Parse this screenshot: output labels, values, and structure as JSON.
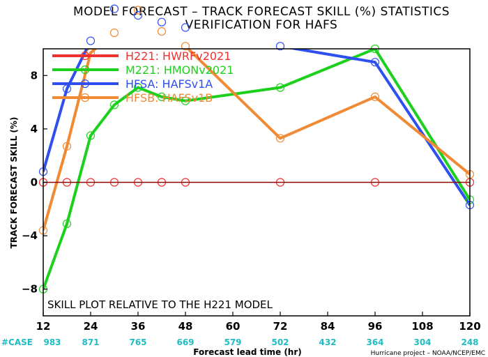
{
  "title_line1": "MODEL FORECAST – TRACK FORECAST SKILL (%) STATISTICS",
  "title_line2": "VERIFICATION FOR HAFS",
  "note": "SKILL PLOT RELATIVE TO THE H221 MODEL",
  "credit": "Hurricane project – NOAA/NCEP/EMC",
  "case_label": "#CASE",
  "colors": {
    "H221": "#ee3030",
    "M221": "#1ed01e",
    "HFSA": "#2f4ff0",
    "HFSB": "#f08a34",
    "zero_line": "#8b0000",
    "case_text": "#1fbcc4"
  },
  "chart_data": {
    "type": "line",
    "xlabel": "Forecast lead time (hr)",
    "ylabel": "TRACK FORECAST SKILL (%)",
    "xlim": [
      12,
      120
    ],
    "ylim": [
      -10,
      10
    ],
    "x_ticks": [
      "12",
      "24",
      "36",
      "48",
      "60",
      "72",
      "84",
      "96",
      "108",
      "120"
    ],
    "y_ticks": [
      "-8",
      "-4",
      "0",
      "4",
      "8"
    ],
    "grid": false,
    "legend_position": "top-left",
    "cases": [
      "983",
      "871",
      "765",
      "669",
      "579",
      "502",
      "432",
      "364",
      "304",
      "248"
    ],
    "series": [
      {
        "name": "H221: HWRFv2021",
        "key": "H221",
        "x": [
          12,
          18,
          24,
          30,
          36,
          42,
          48,
          72,
          96,
          120
        ],
        "y": [
          0,
          0,
          0,
          0,
          0,
          0,
          0,
          0,
          0,
          0
        ]
      },
      {
        "name": "M221: HMONv2021",
        "key": "M221",
        "x": [
          12,
          18,
          24,
          30,
          36,
          42,
          48,
          72,
          96,
          120
        ],
        "y": [
          -8.0,
          -3.1,
          3.5,
          5.8,
          7.1,
          6.4,
          6.1,
          7.1,
          10.0,
          -1.3
        ]
      },
      {
        "name": "HFSA: HAFSv1A",
        "key": "HFSA",
        "x": [
          12,
          18,
          24,
          30,
          36,
          42,
          48,
          72,
          96,
          120
        ],
        "y": [
          0.8,
          7.0,
          10.6,
          13.0,
          12.5,
          12.0,
          11.6,
          10.2,
          9.0,
          -1.7
        ]
      },
      {
        "name": "HFSB: HAFSv1B",
        "key": "HFSB",
        "x": [
          12,
          18,
          24,
          30,
          36,
          42,
          48,
          72,
          96,
          120
        ],
        "y": [
          -3.6,
          2.7,
          9.7,
          11.2,
          12.9,
          11.3,
          10.2,
          3.3,
          6.4,
          0.6
        ]
      }
    ]
  }
}
